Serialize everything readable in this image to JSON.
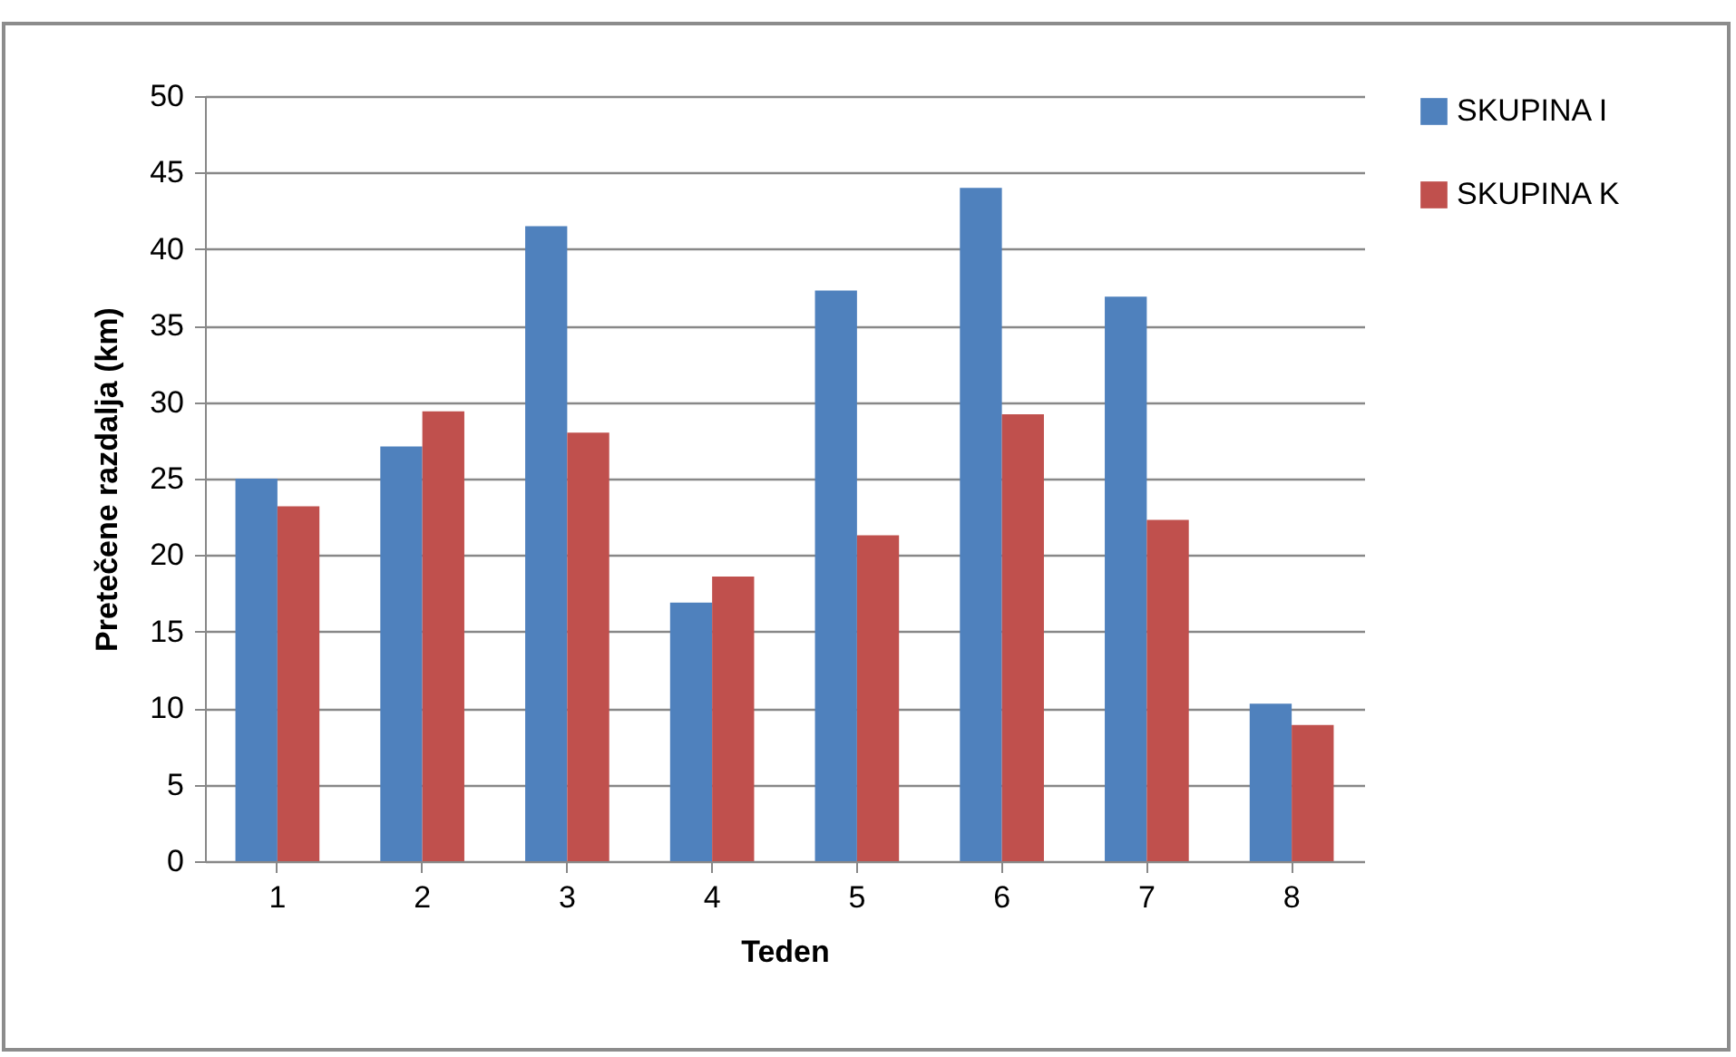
{
  "chart_data": {
    "type": "bar",
    "xlabel": "Teden",
    "ylabel": "Pretečene razdalja  (km)",
    "categories": [
      "1",
      "2",
      "3",
      "4",
      "5",
      "6",
      "7",
      "8"
    ],
    "series": [
      {
        "name": "SKUPINA I",
        "color": "#4f81bd",
        "values": [
          25,
          27.1,
          41.5,
          16.9,
          37.3,
          44,
          36.9,
          10.3
        ]
      },
      {
        "name": "SKUPINA K",
        "color": "#c0504d",
        "values": [
          23.2,
          29.4,
          28,
          18.6,
          21.3,
          29.2,
          22.3,
          8.9
        ]
      }
    ],
    "ylim": [
      0,
      50
    ],
    "yticks": [
      0,
      5,
      10,
      15,
      20,
      25,
      30,
      35,
      40,
      45,
      50
    ],
    "grid": "y",
    "legend": "right"
  }
}
